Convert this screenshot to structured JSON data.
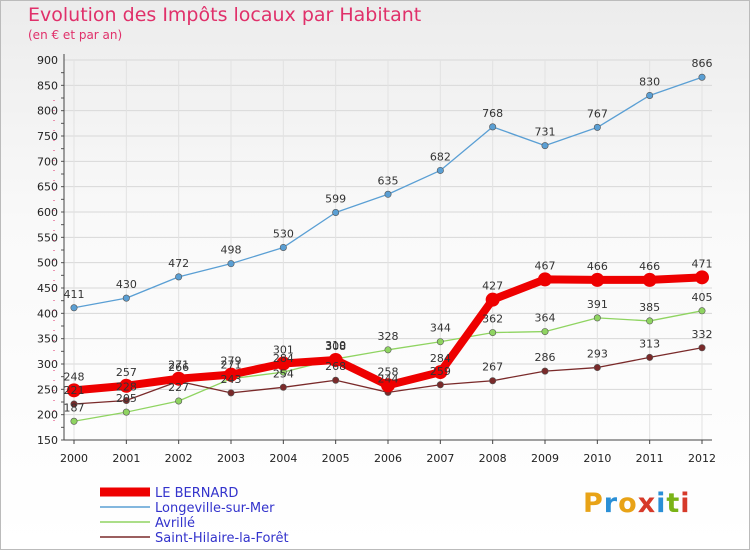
{
  "title": "Evolution des Impôts locaux par Habitant",
  "subtitle": "(en € et par an)",
  "logo_text": "Proxiti",
  "logo_colors": [
    "#e8a317",
    "#2a8fd6",
    "#e8a317",
    "#d63a2a",
    "#2a8fd6",
    "#7ab317",
    "#d63a2a"
  ],
  "chart_data": {
    "type": "line",
    "title": "Evolution des Impôts locaux par Habitant",
    "subtitle": "(en € et par an)",
    "xlabel": "",
    "ylabel": "",
    "x": [
      "2000",
      "2001",
      "2002",
      "2003",
      "2004",
      "2005",
      "2006",
      "2007",
      "2008",
      "2009",
      "2010",
      "2011",
      "2012"
    ],
    "ylim": [
      150,
      900
    ],
    "yticks": [
      150,
      200,
      250,
      300,
      350,
      400,
      450,
      500,
      550,
      600,
      650,
      700,
      750,
      800,
      850,
      900
    ],
    "grid": true,
    "legend_position": "bottom-left",
    "series": [
      {
        "name": "LE BERNARD",
        "color": "#ee0000",
        "values": [
          248,
          257,
          271,
          279,
          301,
          308,
          258,
          284,
          427,
          467,
          466,
          466,
          471
        ]
      },
      {
        "name": "Longeville-sur-Mer",
        "color": "#5a9fd4",
        "values": [
          411,
          430,
          472,
          498,
          530,
          599,
          635,
          682,
          768,
          731,
          767,
          830,
          866
        ]
      },
      {
        "name": "Avrillé",
        "color": "#8fd461",
        "values": [
          187,
          205,
          227,
          271,
          284,
          310,
          328,
          344,
          362,
          364,
          391,
          385,
          405
        ]
      },
      {
        "name": "Saint-Hilaire-la-Forêt",
        "color": "#7a2a2a",
        "values": [
          221,
          228,
          266,
          243,
          254,
          268,
          244,
          259,
          267,
          286,
          293,
          313,
          332
        ]
      }
    ]
  }
}
